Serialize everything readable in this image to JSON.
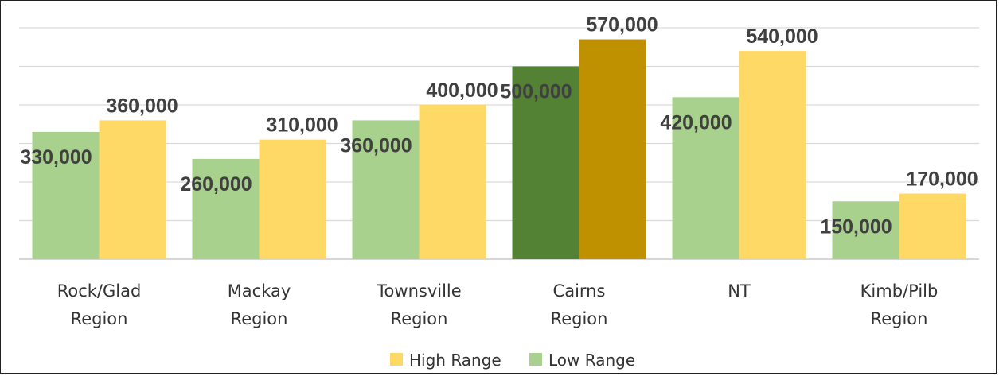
{
  "chart_data": {
    "type": "bar",
    "categories": [
      [
        "Rock/Glad",
        "Region"
      ],
      [
        "Mackay",
        "Region"
      ],
      [
        "Townsville",
        "Region"
      ],
      [
        "Cairns",
        "Region"
      ],
      [
        "NT"
      ],
      [
        "Kimb/Pilb",
        "Region"
      ]
    ],
    "series": [
      {
        "name": "Low Range",
        "values": [
          330000,
          260000,
          360000,
          500000,
          420000,
          150000
        ],
        "data_labels": [
          "330,000",
          "260,000",
          "360,000",
          "500,000",
          "420,000",
          "150,000"
        ],
        "color": "#A9D18E",
        "highlight_color": "#548235"
      },
      {
        "name": "High Range",
        "values": [
          360000,
          310000,
          400000,
          570000,
          540000,
          170000
        ],
        "data_labels": [
          "360,000",
          "310,000",
          "400,000",
          "570,000",
          "540,000",
          "170,000"
        ],
        "color": "#FFD966",
        "highlight_color": "#BF9000"
      }
    ],
    "highlighted_category": "Cairns",
    "ylim": [
      0,
      600000
    ],
    "grid": true,
    "legend": {
      "placement": "bottom",
      "order": [
        "High Range",
        "Low Range"
      ]
    },
    "title": "",
    "xlabel": "",
    "ylabel": ""
  }
}
